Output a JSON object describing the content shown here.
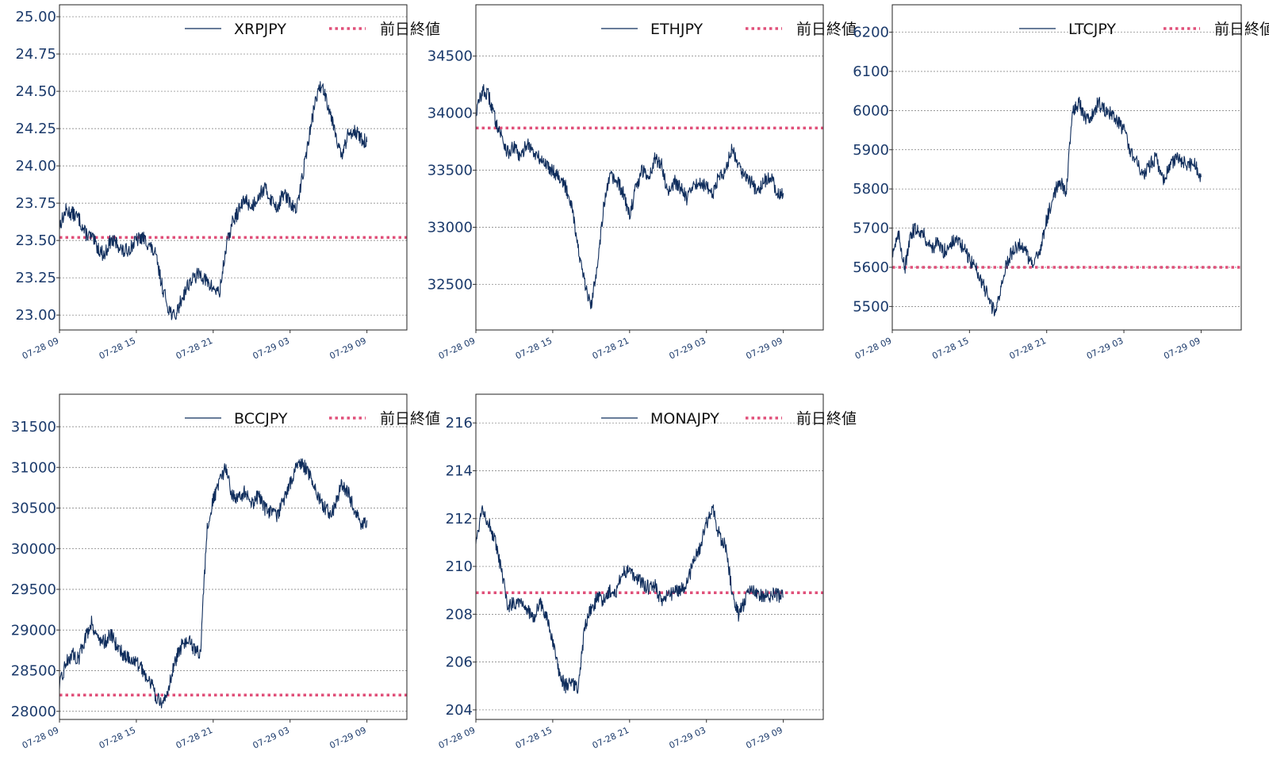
{
  "colors": {
    "series": "#0f2d5c",
    "reference": "#e0507a",
    "grid": "#777777",
    "tick": "#1b3a6b"
  },
  "chart_data": [
    {
      "type": "line",
      "x_ticks": [
        "07-28 09",
        "07-28 15",
        "07-28 21",
        "07-29 03",
        "07-29 09"
      ],
      "y_ticks": [
        23.0,
        23.25,
        23.5,
        23.75,
        24.0,
        24.25,
        24.5,
        24.75,
        25.0
      ],
      "y_tick_labels": [
        "23.00",
        "23.25",
        "23.50",
        "23.75",
        "24.00",
        "24.25",
        "24.50",
        "24.75",
        "25.00"
      ],
      "ylim": [
        22.9,
        25.08
      ],
      "reference": {
        "name": "前日終値",
        "value": 23.52
      },
      "series": [
        {
          "name": "XRPJPY",
          "x": [
            0,
            0.5,
            1,
            1.5,
            2,
            2.5,
            3,
            3.5,
            4,
            4.5,
            5,
            5.5,
            6,
            6.5,
            7,
            7.5,
            8,
            8.5,
            9,
            9.5,
            10,
            10.5,
            11,
            11.5,
            12,
            12.5,
            13,
            13.5,
            14,
            14.5,
            15,
            15.5,
            16,
            16.5,
            17,
            17.5,
            18,
            18.5,
            19,
            19.5,
            20,
            20.5,
            21,
            21.5,
            22,
            22.5,
            23,
            23.5,
            24
          ],
          "y": [
            23.6,
            23.7,
            23.68,
            23.65,
            23.55,
            23.52,
            23.45,
            23.4,
            23.5,
            23.48,
            23.42,
            23.45,
            23.5,
            23.52,
            23.47,
            23.4,
            23.2,
            23.05,
            22.98,
            23.1,
            23.2,
            23.25,
            23.28,
            23.22,
            23.18,
            23.15,
            23.45,
            23.62,
            23.7,
            23.78,
            23.72,
            23.8,
            23.85,
            23.78,
            23.72,
            23.82,
            23.75,
            23.7,
            23.95,
            24.2,
            24.45,
            24.55,
            24.4,
            24.25,
            24.05,
            24.2,
            24.25,
            24.18,
            24.16
          ]
        }
      ],
      "legend": "top-right",
      "grid": "horizontal"
    },
    {
      "type": "line",
      "x_ticks": [
        "07-28 09",
        "07-28 15",
        "07-28 21",
        "07-29 03",
        "07-29 09"
      ],
      "y_ticks": [
        32500,
        33000,
        33500,
        34000,
        34500
      ],
      "y_tick_labels": [
        "32500",
        "33000",
        "33500",
        "34000",
        "34500"
      ],
      "ylim": [
        32100,
        34950
      ],
      "reference": {
        "name": "前日終値",
        "value": 33870
      },
      "series": [
        {
          "name": "ETHJPY",
          "x": [
            0,
            0.5,
            1,
            1.5,
            2,
            2.5,
            3,
            3.5,
            4,
            4.5,
            5,
            5.5,
            6,
            6.5,
            7,
            7.5,
            8,
            8.5,
            9,
            9.5,
            10,
            10.5,
            11,
            11.5,
            12,
            12.5,
            13,
            13.5,
            14,
            14.5,
            15,
            15.5,
            16,
            16.5,
            17,
            17.5,
            18,
            18.5,
            19,
            19.5,
            20,
            20.5,
            21,
            21.5,
            22,
            22.5,
            23,
            23.5,
            24
          ],
          "y": [
            34000,
            34200,
            34150,
            33950,
            33800,
            33650,
            33700,
            33600,
            33750,
            33650,
            33600,
            33550,
            33500,
            33450,
            33350,
            33200,
            32800,
            32500,
            32300,
            32700,
            33200,
            33450,
            33400,
            33300,
            33100,
            33350,
            33500,
            33450,
            33600,
            33550,
            33300,
            33400,
            33350,
            33250,
            33350,
            33400,
            33350,
            33300,
            33450,
            33500,
            33700,
            33550,
            33450,
            33400,
            33300,
            33400,
            33450,
            33300,
            33300
          ]
        }
      ],
      "legend": "top-right",
      "grid": "horizontal"
    },
    {
      "type": "line",
      "x_ticks": [
        "07-28 09",
        "07-28 15",
        "07-28 21",
        "07-29 03",
        "07-29 09"
      ],
      "y_ticks": [
        5500,
        5600,
        5700,
        5800,
        5900,
        6000,
        6100,
        6200
      ],
      "y_tick_labels": [
        "5500",
        "5600",
        "5700",
        "5800",
        "5900",
        "6000",
        "6100",
        "6200"
      ],
      "ylim": [
        5440,
        6270
      ],
      "reference": {
        "name": "前日終値",
        "value": 5600
      },
      "series": [
        {
          "name": "LTCJPY",
          "x": [
            0,
            0.5,
            1,
            1.5,
            2,
            2.5,
            3,
            3.5,
            4,
            4.5,
            5,
            5.5,
            6,
            6.5,
            7,
            7.5,
            8,
            8.5,
            9,
            9.5,
            10,
            10.5,
            11,
            11.5,
            12,
            12.5,
            13,
            13.5,
            14,
            14.5,
            15,
            15.5,
            16,
            16.5,
            17,
            17.5,
            18,
            18.5,
            19,
            19.5,
            20,
            20.5,
            21,
            21.5,
            22,
            22.5,
            23,
            23.5,
            24
          ],
          "y": [
            5640,
            5680,
            5600,
            5690,
            5700,
            5680,
            5650,
            5660,
            5640,
            5660,
            5670,
            5650,
            5620,
            5600,
            5560,
            5520,
            5480,
            5560,
            5620,
            5650,
            5660,
            5630,
            5600,
            5650,
            5720,
            5780,
            5820,
            5790,
            6000,
            6020,
            5980,
            5990,
            6020,
            6000,
            5990,
            5970,
            5950,
            5900,
            5870,
            5830,
            5860,
            5880,
            5820,
            5850,
            5880,
            5870,
            5860,
            5860,
            5830
          ]
        }
      ],
      "legend": "top-right",
      "grid": "horizontal"
    },
    {
      "type": "line",
      "x_ticks": [
        "07-28 09",
        "07-28 15",
        "07-28 21",
        "07-29 03",
        "07-29 09"
      ],
      "y_ticks": [
        28000,
        28500,
        29000,
        29500,
        30000,
        30500,
        31000,
        31500
      ],
      "y_tick_labels": [
        "28000",
        "28500",
        "29000",
        "29500",
        "30000",
        "30500",
        "31000",
        "31500"
      ],
      "ylim": [
        27900,
        31900
      ],
      "reference": {
        "name": "前日終値",
        "value": 28200
      },
      "series": [
        {
          "name": "BCCJPY",
          "x": [
            0,
            0.5,
            1,
            1.5,
            2,
            2.5,
            3,
            3.5,
            4,
            4.5,
            5,
            5.5,
            6,
            6.5,
            7,
            7.5,
            8,
            8.5,
            9,
            9.5,
            10,
            10.5,
            11,
            11.5,
            12,
            12.5,
            13,
            13.5,
            14,
            14.5,
            15,
            15.5,
            16,
            16.5,
            17,
            17.5,
            18,
            18.5,
            19,
            19.5,
            20,
            20.5,
            21,
            21.5,
            22,
            22.5,
            23,
            23.5,
            24
          ],
          "y": [
            28300,
            28600,
            28700,
            28650,
            28900,
            29100,
            28900,
            28850,
            28950,
            28800,
            28700,
            28650,
            28600,
            28500,
            28400,
            28200,
            28050,
            28300,
            28600,
            28800,
            28900,
            28750,
            28700,
            30200,
            30600,
            30800,
            31000,
            30650,
            30600,
            30700,
            30550,
            30650,
            30500,
            30450,
            30400,
            30600,
            30800,
            31000,
            31050,
            30900,
            30700,
            30550,
            30450,
            30500,
            30800,
            30700,
            30500,
            30300,
            30350
          ]
        }
      ],
      "legend": "top-right",
      "grid": "horizontal"
    },
    {
      "type": "line",
      "x_ticks": [
        "07-28 09",
        "07-28 15",
        "07-28 21",
        "07-29 03",
        "07-29 09"
      ],
      "y_ticks": [
        204,
        206,
        208,
        210,
        212,
        214,
        216
      ],
      "y_tick_labels": [
        "204",
        "206",
        "208",
        "210",
        "212",
        "214",
        "216"
      ],
      "ylim": [
        203.6,
        217.2
      ],
      "reference": {
        "name": "前日終値",
        "value": 208.9
      },
      "series": [
        {
          "name": "MONAJPY",
          "x": [
            0,
            0.5,
            1,
            1.5,
            2,
            2.5,
            3,
            3.5,
            4,
            4.5,
            5,
            5.5,
            6,
            6.5,
            7,
            7.5,
            8,
            8.5,
            9,
            9.5,
            10,
            10.5,
            11,
            11.5,
            12,
            12.5,
            13,
            13.5,
            14,
            14.5,
            15,
            15.5,
            16,
            16.5,
            17,
            17.5,
            18,
            18.5,
            19,
            19.5,
            20,
            20.5,
            21,
            21.5,
            22,
            22.5,
            23,
            23.5,
            24
          ],
          "y": [
            211,
            212.5,
            211.8,
            211,
            209.8,
            208.3,
            208.5,
            208.6,
            208.2,
            207.8,
            208.5,
            207.9,
            206.8,
            205.5,
            205,
            205.2,
            204.8,
            207.5,
            208.2,
            208.7,
            208.6,
            209,
            209,
            209.8,
            209.8,
            209.6,
            209.3,
            209.1,
            209.2,
            208.5,
            208.8,
            208.9,
            209,
            209.3,
            210.2,
            210.8,
            211.8,
            212.4,
            211.3,
            210.8,
            209,
            208,
            208.5,
            209.2,
            208.8,
            208.8,
            208.8,
            208.8,
            208.7
          ]
        }
      ],
      "legend": "top-right",
      "grid": "horizontal"
    }
  ]
}
